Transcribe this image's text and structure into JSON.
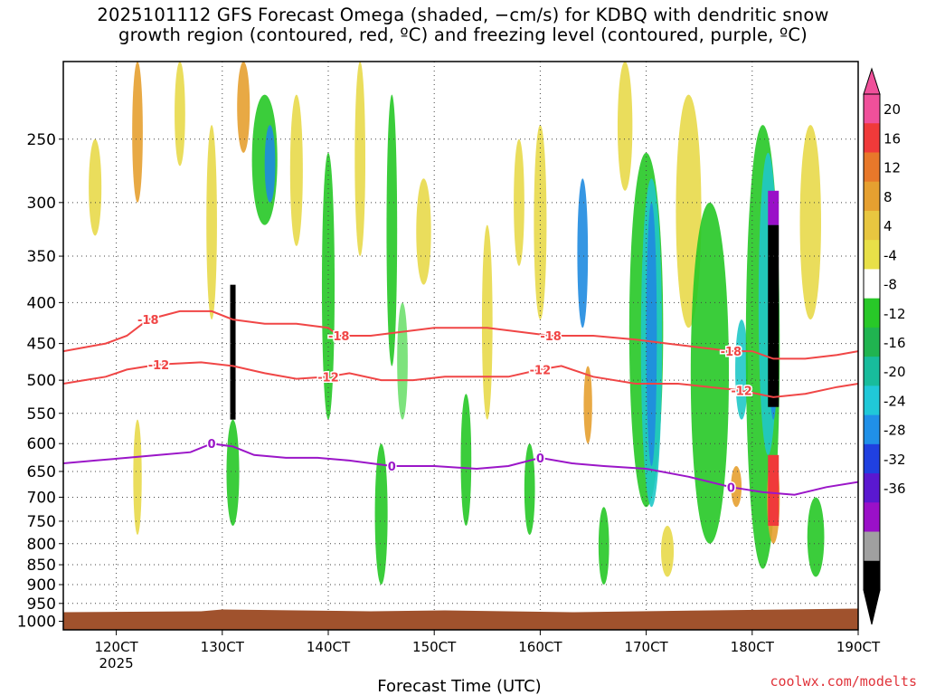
{
  "title_line1": "2025101112 GFS Forecast Omega (shaded, −cm/s) for KDBQ with dendritic snow",
  "title_line2": "growth region (contoured, red, ºC) and freezing level (contoured, purple, ºC)",
  "xlabel": "Forecast Time (UTC)",
  "credit": "coolwx.com/modelts",
  "colors": {
    "frame": "#000000",
    "grid": "#444444",
    "ground": "#a0522d",
    "dendritic_line": "#f04646",
    "freezing_line": "#9b16c8",
    "shade_green_light": "#6fe06f",
    "shade_green": "#26c826",
    "shade_yellow": "#e8d94a",
    "shade_orange": "#e6a030",
    "shade_cyan": "#20c8c8",
    "shade_blue": "#1f8be0"
  },
  "chart_data": {
    "type": "heatmap",
    "title": "2025101112 GFS Forecast Omega (shaded, −cm/s) for KDBQ with dendritic snow growth region (contoured, red, ºC) and freezing level (contoured, purple, ºC)",
    "xlabel": "Forecast Time (UTC)",
    "ylabel": "",
    "x_ticks": [
      "120CT",
      "130CT",
      "140CT",
      "150CT",
      "160CT",
      "170CT",
      "180CT",
      "190CT"
    ],
    "x_tick_year": "2025",
    "y_ticks": [
      250,
      300,
      350,
      400,
      450,
      500,
      550,
      600,
      650,
      700,
      750,
      800,
      850,
      900,
      950,
      1000
    ],
    "y_unit_axis": "pressure (hPa), inverted log",
    "ylim": [
      200,
      1025
    ],
    "xlim_days_oct": [
      11.5,
      19.0
    ],
    "colorbar": {
      "labels": [
        20,
        16,
        12,
        8,
        4,
        -4,
        -8,
        -12,
        -16,
        -20,
        -24,
        -28,
        -32,
        -36
      ],
      "colors": [
        "#f0509a",
        "#f03a3a",
        "#e8782a",
        "#e6a030",
        "#e8c640",
        "#e8e048",
        "#ffffff",
        "#28c828",
        "#20b450",
        "#18bc9c",
        "#20c8d8",
        "#2090e8",
        "#2040e0",
        "#5a18d0",
        "#9a10c8",
        "#a0a0a0",
        "#000000"
      ]
    },
    "contours": [
      {
        "label": "-18",
        "color": "red",
        "points": [
          [
            11.5,
            460
          ],
          [
            11.7,
            455
          ],
          [
            11.9,
            450
          ],
          [
            12.1,
            440
          ],
          [
            12.3,
            420
          ],
          [
            12.6,
            410
          ],
          [
            12.9,
            410
          ],
          [
            13.1,
            420
          ],
          [
            13.4,
            425
          ],
          [
            13.7,
            425
          ],
          [
            14.0,
            430
          ],
          [
            14.1,
            440
          ],
          [
            14.4,
            440
          ],
          [
            14.7,
            435
          ],
          [
            15.0,
            430
          ],
          [
            15.2,
            430
          ],
          [
            15.5,
            430
          ],
          [
            15.8,
            435
          ],
          [
            16.1,
            440
          ],
          [
            16.5,
            440
          ],
          [
            16.9,
            445
          ],
          [
            17.2,
            450
          ],
          [
            17.5,
            455
          ],
          [
            17.8,
            460
          ],
          [
            18.0,
            460
          ],
          [
            18.2,
            470
          ],
          [
            18.5,
            470
          ],
          [
            18.8,
            465
          ],
          [
            19.0,
            460
          ]
        ]
      },
      {
        "label": "-12",
        "color": "red",
        "points": [
          [
            11.5,
            505
          ],
          [
            11.7,
            500
          ],
          [
            11.9,
            495
          ],
          [
            12.1,
            485
          ],
          [
            12.4,
            478
          ],
          [
            12.8,
            475
          ],
          [
            13.1,
            480
          ],
          [
            13.4,
            490
          ],
          [
            13.7,
            498
          ],
          [
            14.0,
            495
          ],
          [
            14.2,
            490
          ],
          [
            14.5,
            500
          ],
          [
            14.8,
            500
          ],
          [
            15.1,
            495
          ],
          [
            15.4,
            495
          ],
          [
            15.7,
            495
          ],
          [
            16.0,
            485
          ],
          [
            16.2,
            480
          ],
          [
            16.5,
            495
          ],
          [
            16.9,
            505
          ],
          [
            17.3,
            505
          ],
          [
            17.6,
            510
          ],
          [
            17.9,
            515
          ],
          [
            18.2,
            525
          ],
          [
            18.5,
            520
          ],
          [
            18.8,
            510
          ],
          [
            19.0,
            505
          ]
        ]
      },
      {
        "label": "0",
        "color": "purple",
        "points": [
          [
            11.5,
            635
          ],
          [
            11.8,
            630
          ],
          [
            12.1,
            625
          ],
          [
            12.4,
            620
          ],
          [
            12.7,
            615
          ],
          [
            12.9,
            600
          ],
          [
            13.1,
            605
          ],
          [
            13.3,
            620
          ],
          [
            13.6,
            625
          ],
          [
            13.9,
            625
          ],
          [
            14.2,
            630
          ],
          [
            14.6,
            640
          ],
          [
            15.0,
            640
          ],
          [
            15.4,
            645
          ],
          [
            15.7,
            640
          ],
          [
            16.0,
            625
          ],
          [
            16.3,
            635
          ],
          [
            16.6,
            640
          ],
          [
            17.0,
            645
          ],
          [
            17.4,
            660
          ],
          [
            17.8,
            680
          ],
          [
            18.1,
            690
          ],
          [
            18.4,
            695
          ],
          [
            18.7,
            680
          ],
          [
            19.0,
            670
          ]
        ]
      }
    ],
    "notable_features": [
      {
        "time": "130CT",
        "note": "strong narrow upward-motion column near 13.1 Oct (up to -36)"
      },
      {
        "time": "182CT",
        "note": "deep strong upward motion column near 18.2 Oct, 300-550 hPa (up to -36)"
      },
      {
        "time": "170CT",
        "note": "broad upward motion 17.0 Oct, 250-800 hPa"
      }
    ]
  }
}
